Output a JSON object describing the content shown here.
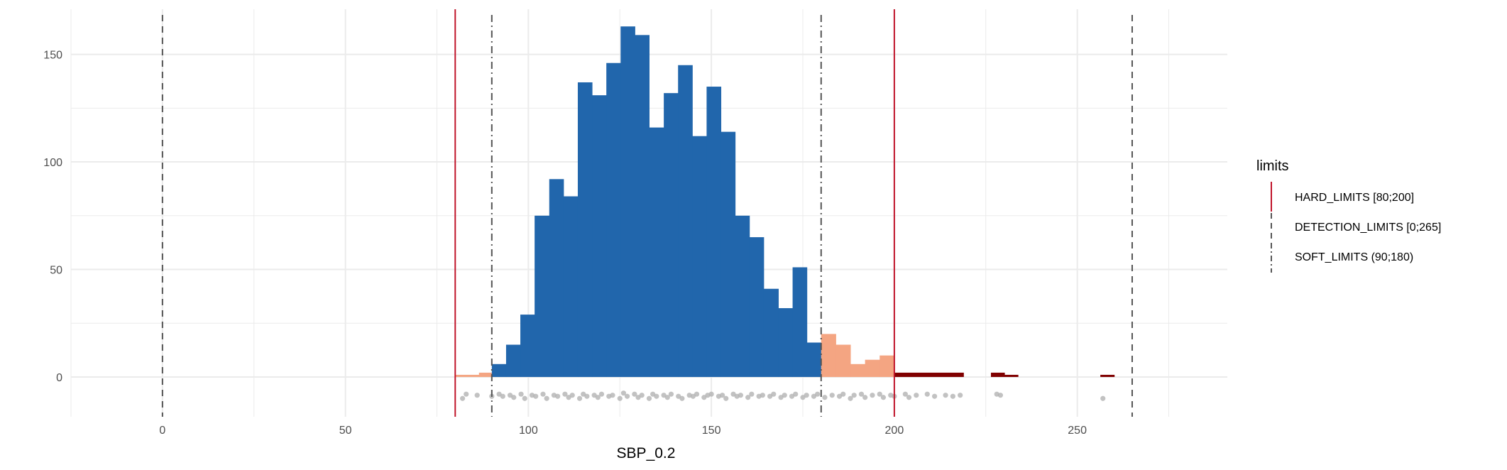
{
  "chart_data": {
    "type": "bar",
    "title": "",
    "xlabel": "SBP_0.2",
    "ylabel": "",
    "xlim": [
      -25,
      291
    ],
    "ylim": [
      -18.5,
      171
    ],
    "x_ticks": [
      0,
      50,
      100,
      150,
      200,
      250
    ],
    "x_tick_labels": [
      "0",
      "50",
      "100",
      "150",
      "200",
      "250"
    ],
    "y_ticks": [
      0,
      50,
      100,
      150
    ],
    "y_tick_labels": [
      "0",
      "50",
      "100",
      "150"
    ],
    "grid": true,
    "colors": {
      "within_soft": "#2166ac",
      "between_soft_hard": "#f4a582",
      "outside_hard": "#800000",
      "points": "#b3b3b3",
      "hard_line": "#c0142a",
      "detection_line": "#555555",
      "soft_line": "#555555"
    },
    "bins": [
      {
        "x0": 80,
        "x1": 86.5,
        "count": 1,
        "group": "between_soft_hard"
      },
      {
        "x0": 86.5,
        "x1": 90,
        "count": 2,
        "group": "between_soft_hard"
      },
      {
        "x0": 90.0,
        "x1": 93.9,
        "count": 6,
        "group": "within_soft"
      },
      {
        "x0": 93.9,
        "x1": 97.8,
        "count": 15,
        "group": "within_soft"
      },
      {
        "x0": 97.8,
        "x1": 101.7,
        "count": 29,
        "group": "within_soft"
      },
      {
        "x0": 101.7,
        "x1": 105.7,
        "count": 75,
        "group": "within_soft"
      },
      {
        "x0": 105.7,
        "x1": 109.6,
        "count": 92,
        "group": "within_soft"
      },
      {
        "x0": 109.6,
        "x1": 113.5,
        "count": 84,
        "group": "within_soft"
      },
      {
        "x0": 113.5,
        "x1": 117.4,
        "count": 137,
        "group": "within_soft"
      },
      {
        "x0": 117.4,
        "x1": 121.3,
        "count": 131,
        "group": "within_soft"
      },
      {
        "x0": 121.3,
        "x1": 125.2,
        "count": 146,
        "group": "within_soft"
      },
      {
        "x0": 125.2,
        "x1": 129.1,
        "count": 163,
        "group": "within_soft"
      },
      {
        "x0": 129.1,
        "x1": 133.0,
        "count": 159,
        "group": "within_soft"
      },
      {
        "x0": 133.0,
        "x1": 137.0,
        "count": 116,
        "group": "within_soft"
      },
      {
        "x0": 137.0,
        "x1": 140.9,
        "count": 132,
        "group": "within_soft"
      },
      {
        "x0": 140.9,
        "x1": 144.8,
        "count": 145,
        "group": "within_soft"
      },
      {
        "x0": 144.8,
        "x1": 148.7,
        "count": 112,
        "group": "within_soft"
      },
      {
        "x0": 148.7,
        "x1": 152.6,
        "count": 135,
        "group": "within_soft"
      },
      {
        "x0": 152.6,
        "x1": 156.5,
        "count": 114,
        "group": "within_soft"
      },
      {
        "x0": 156.5,
        "x1": 160.4,
        "count": 75,
        "group": "within_soft"
      },
      {
        "x0": 160.4,
        "x1": 164.3,
        "count": 65,
        "group": "within_soft"
      },
      {
        "x0": 164.3,
        "x1": 168.3,
        "count": 41,
        "group": "within_soft"
      },
      {
        "x0": 168.3,
        "x1": 172.2,
        "count": 32,
        "group": "within_soft"
      },
      {
        "x0": 172.2,
        "x1": 176.1,
        "count": 51,
        "group": "within_soft"
      },
      {
        "x0": 176.1,
        "x1": 180.0,
        "count": 16,
        "group": "within_soft"
      },
      {
        "x0": 180,
        "x1": 184,
        "count": 20,
        "group": "between_soft_hard"
      },
      {
        "x0": 184,
        "x1": 188,
        "count": 15,
        "group": "between_soft_hard"
      },
      {
        "x0": 188,
        "x1": 192,
        "count": 6,
        "group": "between_soft_hard"
      },
      {
        "x0": 192,
        "x1": 196,
        "count": 8,
        "group": "between_soft_hard"
      },
      {
        "x0": 196,
        "x1": 200,
        "count": 10,
        "group": "between_soft_hard"
      },
      {
        "x0": 200,
        "x1": 218.9,
        "count": 2,
        "group": "outside_hard"
      },
      {
        "x0": 226.4,
        "x1": 230.1,
        "count": 2,
        "group": "outside_hard"
      },
      {
        "x0": 230.1,
        "x1": 233.8,
        "count": 1,
        "group": "outside_hard"
      },
      {
        "x0": 256.3,
        "x1": 260.1,
        "count": 1,
        "group": "outside_hard"
      }
    ],
    "points": [
      [
        82,
        -10
      ],
      [
        83,
        -8
      ],
      [
        86,
        -8.5
      ],
      [
        90,
        -9
      ],
      [
        92,
        -8
      ],
      [
        93,
        -9
      ],
      [
        95,
        -8.5
      ],
      [
        96,
        -9.5
      ],
      [
        98,
        -8
      ],
      [
        99,
        -10
      ],
      [
        101,
        -8.5
      ],
      [
        102,
        -9
      ],
      [
        104,
        -8
      ],
      [
        105,
        -10
      ],
      [
        107,
        -8.5
      ],
      [
        108,
        -9
      ],
      [
        110,
        -8
      ],
      [
        111,
        -9.5
      ],
      [
        112,
        -8.5
      ],
      [
        114,
        -10
      ],
      [
        115,
        -8
      ],
      [
        116,
        -9
      ],
      [
        118,
        -8.5
      ],
      [
        119,
        -9.5
      ],
      [
        120,
        -8
      ],
      [
        122,
        -9
      ],
      [
        123,
        -8.5
      ],
      [
        125,
        -10
      ],
      [
        126,
        -7.5
      ],
      [
        127,
        -9
      ],
      [
        129,
        -8
      ],
      [
        130,
        -9.5
      ],
      [
        131,
        -8.5
      ],
      [
        133,
        -10
      ],
      [
        134,
        -8
      ],
      [
        135,
        -9
      ],
      [
        137,
        -8.5
      ],
      [
        138,
        -9.5
      ],
      [
        139,
        -8
      ],
      [
        141,
        -9
      ],
      [
        142,
        -10
      ],
      [
        144,
        -8.5
      ],
      [
        145,
        -9
      ],
      [
        146,
        -8
      ],
      [
        148,
        -9.5
      ],
      [
        149,
        -8.5
      ],
      [
        150,
        -8
      ],
      [
        152,
        -9
      ],
      [
        153,
        -8.5
      ],
      [
        154,
        -10
      ],
      [
        156,
        -8
      ],
      [
        157,
        -9
      ],
      [
        158,
        -8.5
      ],
      [
        160,
        -9.5
      ],
      [
        161,
        -8
      ],
      [
        163,
        -9
      ],
      [
        164,
        -8.5
      ],
      [
        166,
        -9
      ],
      [
        167,
        -8
      ],
      [
        169,
        -9.5
      ],
      [
        170,
        -8.5
      ],
      [
        172,
        -9
      ],
      [
        173,
        -8
      ],
      [
        175,
        -9.5
      ],
      [
        176,
        -8.5
      ],
      [
        178,
        -9
      ],
      [
        179,
        -8
      ],
      [
        181,
        -9.5
      ],
      [
        183,
        -8.5
      ],
      [
        185,
        -9
      ],
      [
        186,
        -8
      ],
      [
        188,
        -10
      ],
      [
        189,
        -8.5
      ],
      [
        191,
        -8
      ],
      [
        192,
        -9.5
      ],
      [
        194,
        -8.5
      ],
      [
        196,
        -8
      ],
      [
        197,
        -9.5
      ],
      [
        199,
        -8.5
      ],
      [
        200,
        -9
      ],
      [
        203,
        -8
      ],
      [
        204,
        -9.5
      ],
      [
        206,
        -8.5
      ],
      [
        209,
        -8
      ],
      [
        211,
        -9
      ],
      [
        214,
        -8.5
      ],
      [
        216,
        -9
      ],
      [
        218,
        -8.5
      ],
      [
        228,
        -8
      ],
      [
        229,
        -8.5
      ],
      [
        257,
        -10
      ]
    ],
    "limits": [
      {
        "name": "HARD_LIMITS",
        "label": "HARD_LIMITS [80;200]",
        "values": [
          80,
          200
        ],
        "style": "solid"
      },
      {
        "name": "DETECTION_LIMITS",
        "label": "DETECTION_LIMITS [0;265]",
        "values": [
          0,
          265
        ],
        "style": "dashed"
      },
      {
        "name": "SOFT_LIMITS",
        "label": "SOFT_LIMITS (90;180)",
        "values": [
          90,
          180
        ],
        "style": "dotdash"
      }
    ],
    "legend": {
      "title": "limits",
      "placement": "right"
    }
  }
}
